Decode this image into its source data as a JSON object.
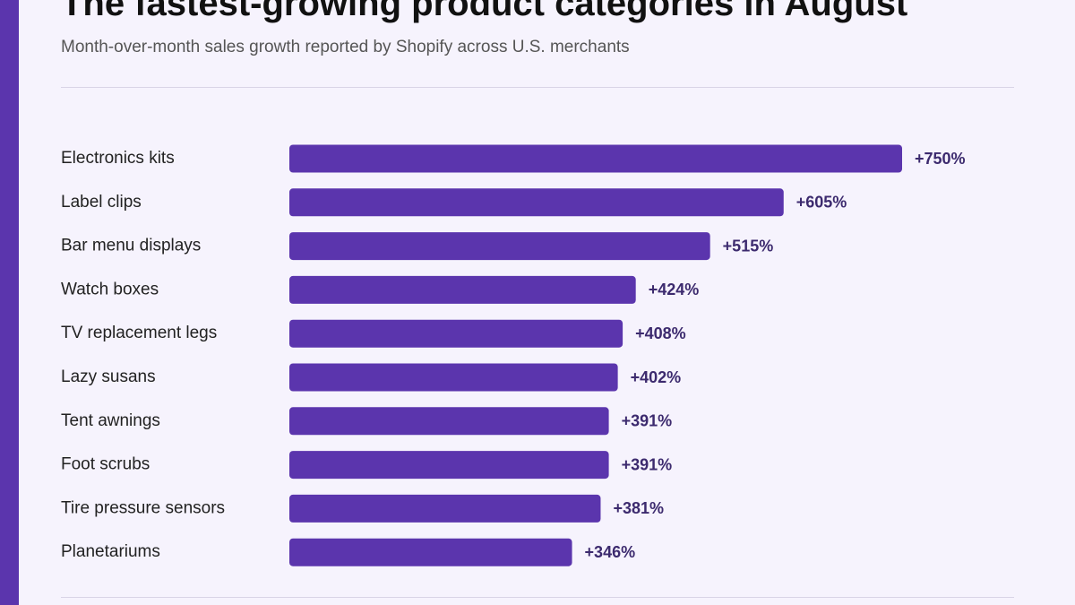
{
  "colors": {
    "accent": "#5b35ad",
    "bar": "#5b35ad",
    "background": "#f6f3fd",
    "value_text": "#3c2a6e"
  },
  "chart_data": {
    "type": "bar",
    "orientation": "horizontal",
    "title": "The fastest-growing product categories in August",
    "subtitle": "Month-over-month sales growth reported by Shopify across U.S. merchants",
    "categories": [
      "Electronics kits",
      "Label clips",
      "Bar menu displays",
      "Watch boxes",
      "TV replacement legs",
      "Lazy susans",
      "Tent awnings",
      "Foot scrubs",
      "Tire pressure sensors",
      "Planetariums"
    ],
    "values": [
      750,
      605,
      515,
      424,
      408,
      402,
      391,
      391,
      381,
      346
    ],
    "value_labels": [
      "+750%",
      "+605%",
      "+515%",
      "+424%",
      "+408%",
      "+402%",
      "+391%",
      "+391%",
      "+381%",
      "+346%"
    ],
    "xlabel": "",
    "ylabel": "",
    "xlim": [
      0,
      750
    ],
    "grid": false,
    "legend": "none"
  }
}
